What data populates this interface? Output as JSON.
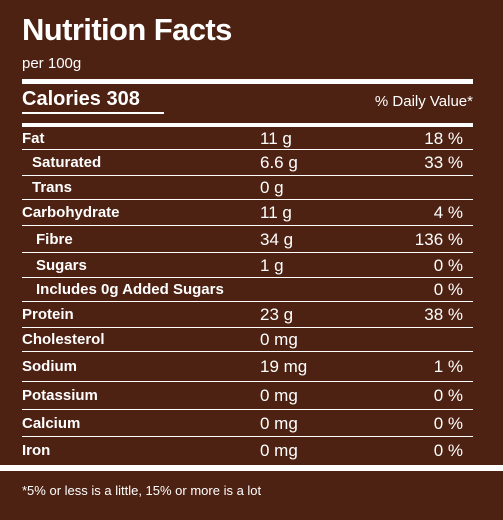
{
  "label": {
    "title": "Nutrition Facts",
    "serving": "per 100g",
    "calories": "Calories 308",
    "daily_value_header": "% Daily Value*",
    "footnote": "*5% or less is a little, 15% or more is a lot"
  },
  "rows": [
    {
      "name": "Fat",
      "amount": "11 g",
      "dv": "18 %"
    },
    {
      "name": "Saturated",
      "amount": "6.6 g",
      "dv": "33 %"
    },
    {
      "name": "Trans",
      "amount": "0 g",
      "dv": ""
    },
    {
      "name": "Carbohydrate",
      "amount": "11 g",
      "dv": "4 %"
    },
    {
      "name": "Fibre",
      "amount": "34 g",
      "dv": "136 %"
    },
    {
      "name": "Sugars",
      "amount": "1 g",
      "dv": "0 %"
    },
    {
      "name": "Includes 0g Added Sugars",
      "amount": "",
      "dv": "0 %"
    },
    {
      "name": "Protein",
      "amount": "23 g",
      "dv": "38 %"
    },
    {
      "name": "Cholesterol",
      "amount": "0 mg",
      "dv": ""
    },
    {
      "name": "Sodium",
      "amount": "19 mg",
      "dv": "1 %"
    },
    {
      "name": "Potassium",
      "amount": "0 mg",
      "dv": "0 %"
    },
    {
      "name": "Calcium",
      "amount": "0 mg",
      "dv": "0 %"
    },
    {
      "name": "Iron",
      "amount": "0 mg",
      "dv": "0 %"
    }
  ],
  "colors": {
    "background": "#4d2212",
    "text": "#ffffff"
  }
}
